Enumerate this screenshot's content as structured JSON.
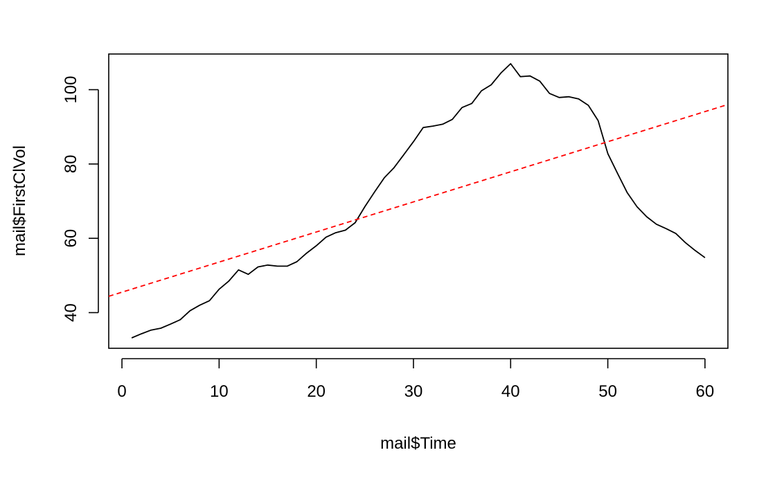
{
  "chart_data": {
    "type": "line",
    "title": "",
    "xlabel": "mail$Time",
    "ylabel": "mail$FirstClVol",
    "xlim": [
      -1.36,
      62.36
    ],
    "ylim": [
      30.4,
      109.6
    ],
    "xticks": [
      0,
      10,
      20,
      30,
      40,
      50,
      60
    ],
    "yticks": [
      40,
      60,
      80,
      100
    ],
    "xtick_labels": [
      "0",
      "10",
      "20",
      "30",
      "40",
      "50",
      "60"
    ],
    "ytick_labels": [
      "40",
      "60",
      "80",
      "100"
    ],
    "grid": false,
    "legend": "none",
    "series": [
      {
        "style": "solid",
        "color": "#000000",
        "x": [
          1,
          2,
          3,
          4,
          5,
          6,
          7,
          8,
          9,
          10,
          11,
          12,
          13,
          14,
          15,
          16,
          17,
          18,
          19,
          20,
          21,
          22,
          23,
          24,
          25,
          26,
          27,
          28,
          29,
          30,
          31,
          32,
          33,
          34,
          35,
          36,
          37,
          38,
          39,
          40,
          41,
          42,
          43,
          44,
          45,
          46,
          47,
          48,
          49,
          50,
          51,
          52,
          53,
          54,
          55,
          56,
          57,
          58,
          59,
          60
        ],
        "y": [
          33.2,
          34.3,
          35.3,
          35.8,
          36.9,
          38.1,
          40.5,
          42.0,
          43.2,
          46.3,
          48.5,
          51.5,
          50.3,
          52.3,
          52.8,
          52.5,
          52.5,
          53.7,
          56.0,
          58.0,
          60.3,
          61.5,
          62.2,
          64.2,
          68.5,
          72.5,
          76.3,
          79.0,
          82.5,
          86.0,
          89.8,
          90.2,
          90.7,
          92.0,
          95.2,
          96.3,
          99.7,
          101.3,
          104.5,
          107.0,
          103.5,
          103.7,
          102.3,
          99.0,
          97.9,
          98.1,
          97.5,
          95.8,
          91.7,
          82.8,
          77.5,
          72.3,
          68.5,
          65.8,
          63.8,
          62.6,
          61.3,
          58.8,
          56.7,
          54.8
        ]
      },
      {
        "style": "dashed",
        "color": "#ff0000",
        "line": {
          "intercept": 45.5,
          "slope": 0.81
        }
      }
    ]
  }
}
